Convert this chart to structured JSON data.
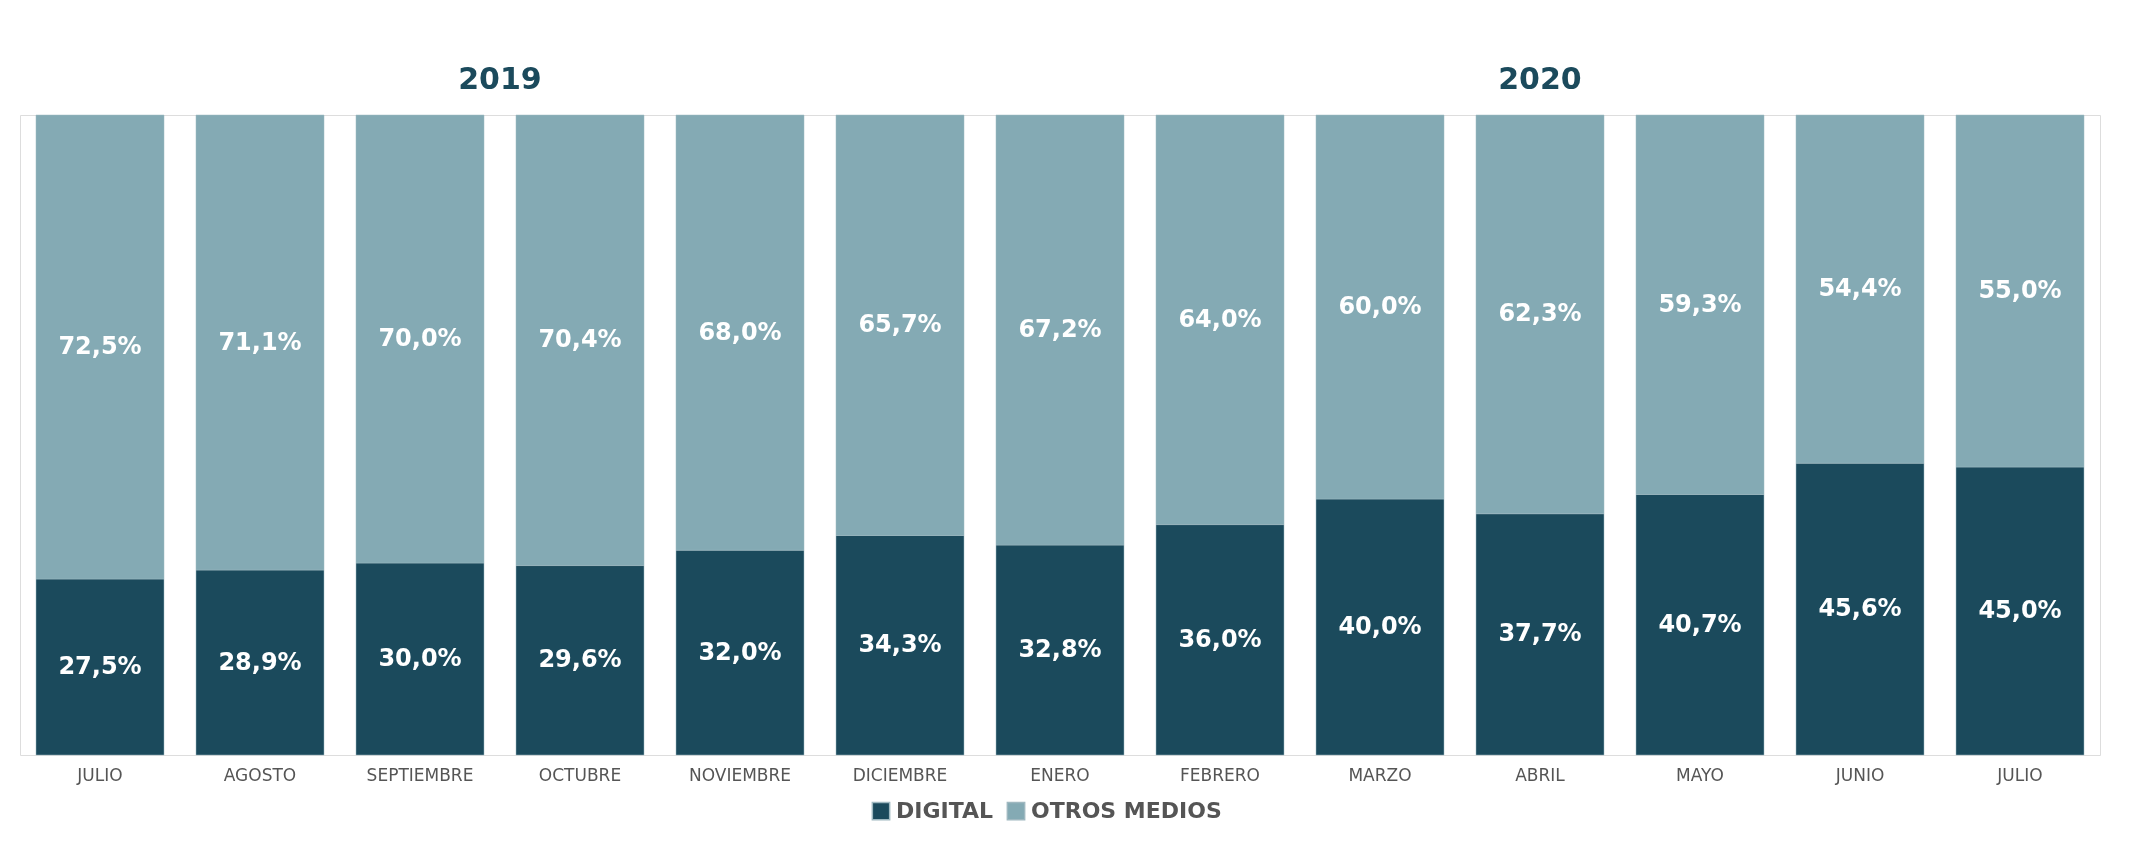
{
  "chart_data": {
    "type": "bar",
    "stacked": true,
    "legend": "bottom",
    "categories": [
      "JULIO",
      "AGOSTO",
      "SEPTIEMBRE",
      "OCTUBRE",
      "NOVIEMBRE",
      "DICIEMBRE",
      "ENERO",
      "FEBRERO",
      "MARZO",
      "ABRIL",
      "MAYO",
      "JUNIO",
      "JULIO"
    ],
    "series": [
      {
        "name": "DIGITAL",
        "color": "#1b4a5c",
        "values": [
          27.5,
          28.9,
          30.0,
          29.6,
          32.0,
          34.3,
          32.8,
          36.0,
          40.0,
          37.7,
          40.7,
          45.6,
          45.0
        ],
        "value_labels": [
          "27,5%",
          "28,9%",
          "30,0%",
          "29,6%",
          "32,0%",
          "34,3%",
          "32,8%",
          "36,0%",
          "40,0%",
          "37,7%",
          "40,7%",
          "45,6%",
          "45,0%"
        ]
      },
      {
        "name": "OTROS MEDIOS",
        "color": "#84aab4",
        "values": [
          72.5,
          71.1,
          70.0,
          70.4,
          68.0,
          65.7,
          67.2,
          64.0,
          60.0,
          62.3,
          59.3,
          54.4,
          55.0
        ],
        "value_labels": [
          "72,5%",
          "71,1%",
          "70,0%",
          "70,4%",
          "68,0%",
          "65,7%",
          "67,2%",
          "64,0%",
          "60,0%",
          "62,3%",
          "59,3%",
          "54,4%",
          "55,0%"
        ]
      }
    ],
    "annotations": [
      "2019",
      "2020"
    ]
  }
}
